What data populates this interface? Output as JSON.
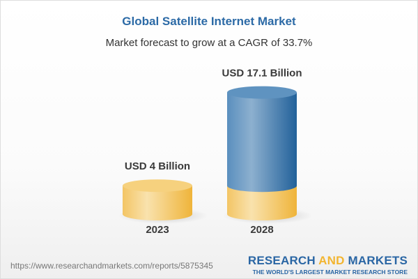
{
  "chart_data": {
    "type": "bar",
    "title": "Global Satellite Internet Market",
    "subtitle": "Market forecast to grow at a CAGR of 33.7%",
    "categories": [
      "2023",
      "2028"
    ],
    "values": [
      4,
      17.1
    ],
    "unit": "USD Billion",
    "data_labels": [
      "USD 4 Billion",
      "USD 17.1 Billion"
    ],
    "style": "3d-cylinder",
    "grid": false,
    "colors": {
      "base": "#f2c55c",
      "growth": "#3f7db3"
    }
  },
  "footer": {
    "url": "https://www.researchandmarkets.com/reports/5875345",
    "logo_part1": "RESEARCH ",
    "logo_part2": "AND",
    "logo_part3": " MARKETS",
    "tagline": "THE WORLD'S LARGEST MARKET RESEARCH STORE"
  }
}
